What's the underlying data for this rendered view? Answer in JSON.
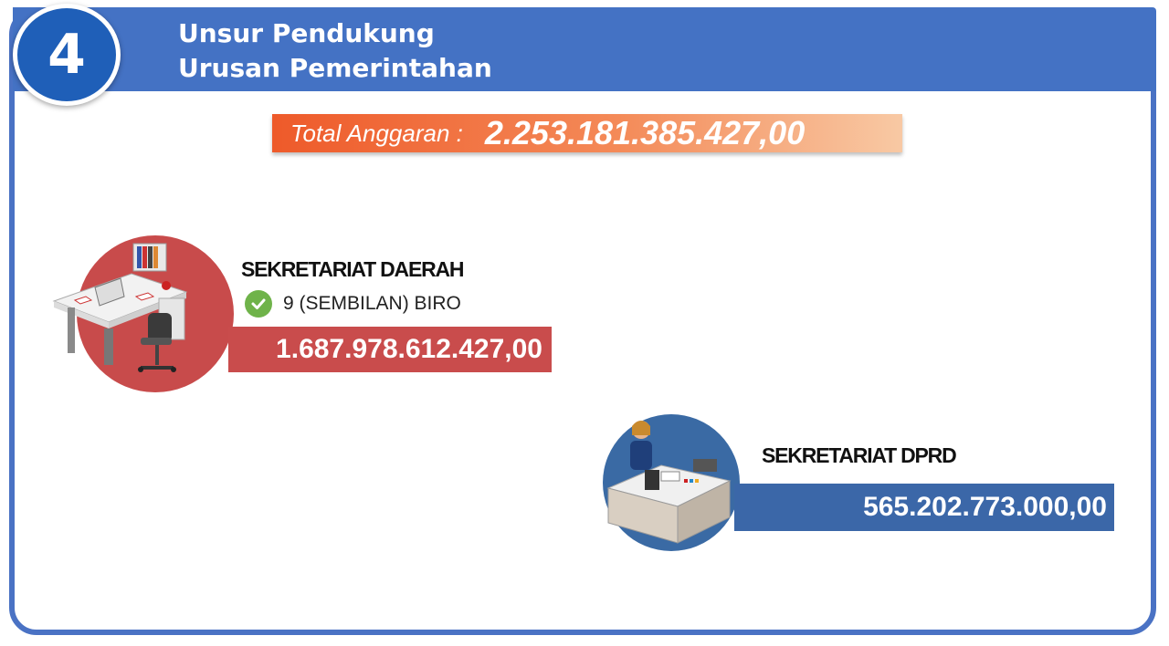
{
  "header": {
    "number": "4",
    "title_line1": "Unsur Pendukung",
    "title_line2": "Urusan Pemerintahan"
  },
  "total": {
    "label": "Total Anggaran :",
    "value": "2.253.181.385.427,00"
  },
  "units": [
    {
      "name": "SEKRETARIAT DAERAH",
      "detail": "9 (SEMBILAN) BIRO",
      "amount": "1.687.978.612.427,00",
      "color": "#c94c4c",
      "icon": "office-desk-icon"
    },
    {
      "name": "SEKRETARIAT DPRD",
      "amount": "565.202.773.000,00",
      "color": "#3b67a8",
      "icon": "receptionist-desk-icon"
    }
  ],
  "colors": {
    "header": "#4472c4",
    "badge": "#1f5fb8",
    "total_bar": "#ee5a2a",
    "check": "#6fb34a"
  }
}
